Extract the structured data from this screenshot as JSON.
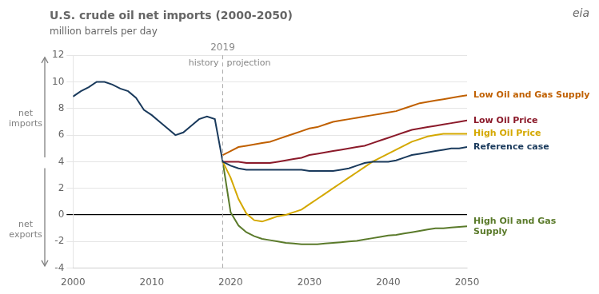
{
  "chart_data": {
    "type": "line",
    "title": "U.S. crude oil net imports (2000-2050)",
    "subtitle": "million barrels per day",
    "y_direction_labels": {
      "up": "net\nimports",
      "down": "net\nexports"
    },
    "logo": "eia",
    "xlim": [
      2000,
      2050
    ],
    "xticks": [
      2000,
      2010,
      2020,
      2030,
      2040,
      2050
    ],
    "ylim": [
      -4,
      12
    ],
    "yticks": [
      -4,
      -2,
      0,
      2,
      4,
      6,
      8,
      10,
      12
    ],
    "grid": "y",
    "vlines": [
      {
        "x": 2019,
        "label": "2019",
        "left_label": "history",
        "right_label": "projection"
      }
    ],
    "hlines": [
      0
    ],
    "series": [
      {
        "name": "Reference case",
        "color": "#1a3a5c",
        "x": [
          2000,
          2001,
          2002,
          2003,
          2004,
          2005,
          2006,
          2007,
          2008,
          2009,
          2010,
          2011,
          2012,
          2013,
          2014,
          2015,
          2016,
          2017,
          2018,
          2019,
          2019,
          2020,
          2021,
          2022,
          2023,
          2024,
          2025,
          2026,
          2027,
          2028,
          2029,
          2030,
          2031,
          2032,
          2033,
          2034,
          2035,
          2036,
          2037,
          2038,
          2039,
          2040,
          2041,
          2042,
          2043,
          2044,
          2045,
          2046,
          2047,
          2048,
          2049,
          2050
        ],
        "values": [
          8.9,
          9.3,
          9.6,
          10.0,
          10.0,
          9.8,
          9.5,
          9.3,
          8.8,
          7.9,
          7.5,
          7.0,
          6.5,
          6.0,
          6.2,
          6.7,
          7.2,
          7.4,
          7.2,
          4.0,
          4.0,
          3.7,
          3.5,
          3.4,
          3.4,
          3.4,
          3.4,
          3.4,
          3.4,
          3.4,
          3.4,
          3.3,
          3.3,
          3.3,
          3.3,
          3.4,
          3.5,
          3.7,
          3.9,
          4.0,
          4.0,
          4.0,
          4.1,
          4.3,
          4.5,
          4.6,
          4.7,
          4.8,
          4.9,
          5.0,
          5.0,
          5.1
        ]
      },
      {
        "name": "Low Oil Price",
        "color": "#8b1a2a",
        "x": [
          2019,
          2020,
          2021,
          2022,
          2023,
          2024,
          2025,
          2026,
          2027,
          2028,
          2029,
          2030,
          2031,
          2032,
          2033,
          2034,
          2035,
          2036,
          2037,
          2038,
          2039,
          2040,
          2041,
          2042,
          2043,
          2044,
          2045,
          2046,
          2047,
          2048,
          2049,
          2050
        ],
        "values": [
          4.0,
          4.0,
          4.0,
          3.9,
          3.9,
          3.9,
          3.9,
          4.0,
          4.1,
          4.2,
          4.3,
          4.5,
          4.6,
          4.7,
          4.8,
          4.9,
          5.0,
          5.1,
          5.2,
          5.4,
          5.6,
          5.8,
          6.0,
          6.2,
          6.4,
          6.5,
          6.6,
          6.7,
          6.8,
          6.9,
          7.0,
          7.1
        ]
      },
      {
        "name": "High Oil Price",
        "color": "#d4a800",
        "x": [
          2019,
          2020,
          2021,
          2022,
          2023,
          2024,
          2025,
          2026,
          2027,
          2028,
          2029,
          2030,
          2031,
          2032,
          2033,
          2034,
          2035,
          2036,
          2037,
          2038,
          2039,
          2040,
          2041,
          2042,
          2043,
          2044,
          2045,
          2046,
          2047,
          2048,
          2049,
          2050
        ],
        "values": [
          4.0,
          2.8,
          1.2,
          0.1,
          -0.4,
          -0.5,
          -0.3,
          -0.1,
          0.0,
          0.2,
          0.4,
          0.8,
          1.2,
          1.6,
          2.0,
          2.4,
          2.8,
          3.2,
          3.6,
          4.0,
          4.3,
          4.6,
          4.9,
          5.2,
          5.5,
          5.7,
          5.9,
          6.0,
          6.1,
          6.1,
          6.1,
          6.1
        ]
      },
      {
        "name": "Low Oil and Gas Supply",
        "color": "#c06000",
        "x": [
          2019,
          2020,
          2021,
          2022,
          2023,
          2024,
          2025,
          2026,
          2027,
          2028,
          2029,
          2030,
          2031,
          2032,
          2033,
          2034,
          2035,
          2036,
          2037,
          2038,
          2039,
          2040,
          2041,
          2042,
          2043,
          2044,
          2045,
          2046,
          2047,
          2048,
          2049,
          2050
        ],
        "values": [
          4.5,
          4.8,
          5.1,
          5.2,
          5.3,
          5.4,
          5.5,
          5.7,
          5.9,
          6.1,
          6.3,
          6.5,
          6.6,
          6.8,
          7.0,
          7.1,
          7.2,
          7.3,
          7.4,
          7.5,
          7.6,
          7.7,
          7.8,
          8.0,
          8.2,
          8.4,
          8.5,
          8.6,
          8.7,
          8.8,
          8.9,
          9.0
        ]
      },
      {
        "name": "High Oil and Gas\nSupply",
        "color": "#5a7a2a",
        "x": [
          2019,
          2020,
          2021,
          2022,
          2023,
          2024,
          2025,
          2026,
          2027,
          2028,
          2029,
          2030,
          2031,
          2032,
          2033,
          2034,
          2035,
          2036,
          2037,
          2038,
          2039,
          2040,
          2041,
          2042,
          2043,
          2044,
          2045,
          2046,
          2047,
          2048,
          2049,
          2050
        ],
        "values": [
          4.0,
          0.2,
          -0.8,
          -1.3,
          -1.6,
          -1.8,
          -1.9,
          -2.0,
          -2.1,
          -2.15,
          -2.2,
          -2.2,
          -2.2,
          -2.15,
          -2.1,
          -2.05,
          -2.0,
          -1.95,
          -1.85,
          -1.75,
          -1.65,
          -1.55,
          -1.5,
          -1.4,
          -1.3,
          -1.2,
          -1.1,
          -1.0,
          -1.0,
          -0.95,
          -0.9,
          -0.85
        ]
      }
    ]
  }
}
